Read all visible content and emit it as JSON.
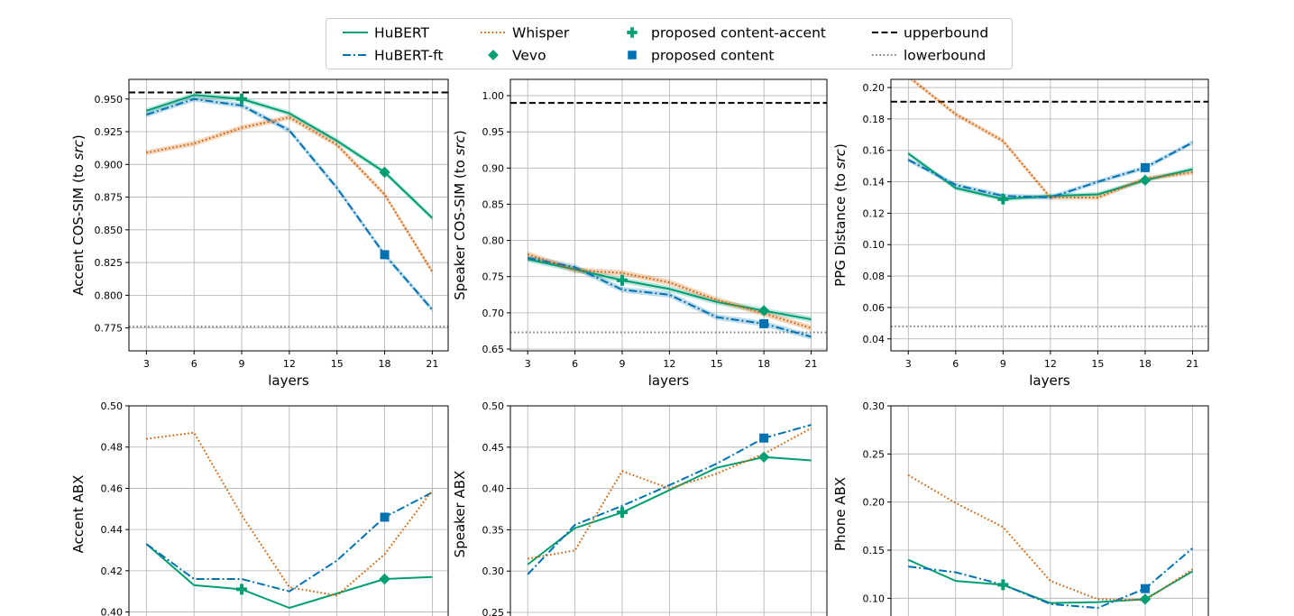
{
  "legend": {
    "entries": [
      {
        "key": "hubert",
        "label": "HuBERT",
        "type": "line",
        "color": "#009e73",
        "dash": "solid"
      },
      {
        "key": "hubert_ft",
        "label": "HuBERT-ft",
        "type": "line",
        "color": "#0072b2",
        "dash": "dashdot"
      },
      {
        "key": "whisper",
        "label": "Whisper",
        "type": "line",
        "color": "#d55e00",
        "dash": "dotted"
      },
      {
        "key": "vevo",
        "label": "Vevo",
        "type": "marker",
        "marker": "diamond",
        "color": "#009e73"
      },
      {
        "key": "pca",
        "label": "proposed content-accent",
        "type": "marker",
        "marker": "plus",
        "color": "#009e73"
      },
      {
        "key": "pc",
        "label": "proposed content",
        "type": "marker",
        "marker": "square",
        "color": "#0072b2"
      },
      {
        "key": "upper",
        "label": "upperbound",
        "type": "line",
        "color": "#000000",
        "dash": "dashed"
      },
      {
        "key": "lower",
        "label": "lowerbound",
        "type": "line",
        "color": "#808080",
        "dash": "dotted"
      }
    ]
  },
  "chart_data": [
    {
      "type": "line",
      "ylabel": "Accent COS-SIM (to src)",
      "ylabel_plain": "Accent COS-SIM (to ",
      "ylabel_italic": "src",
      "xlabel": "layers",
      "x": [
        3,
        6,
        9,
        12,
        15,
        18,
        21
      ],
      "xlim": [
        1.9,
        22.0
      ],
      "ylim": [
        0.7575,
        0.965
      ],
      "yticks": [
        0.775,
        0.8,
        0.825,
        0.85,
        0.875,
        0.9,
        0.925,
        0.95
      ],
      "ytick_labels": [
        "0.775",
        "0.800",
        "0.825",
        "0.850",
        "0.875",
        "0.900",
        "0.925",
        "0.950"
      ],
      "upperbound": 0.955,
      "lowerbound": 0.776,
      "band": 0.002,
      "series": [
        {
          "name": "HuBERT",
          "values": [
            0.941,
            0.953,
            0.95,
            0.939,
            0.918,
            0.894,
            0.859
          ]
        },
        {
          "name": "HuBERT-ft",
          "values": [
            0.938,
            0.95,
            0.945,
            0.926,
            0.882,
            0.831,
            0.789
          ]
        },
        {
          "name": "Whisper",
          "values": [
            0.909,
            0.916,
            0.928,
            0.936,
            0.915,
            0.877,
            0.818
          ]
        }
      ],
      "markers": {
        "vevo": {
          "x": 18,
          "y": 0.894
        },
        "pca": {
          "x": 9,
          "y": 0.95
        },
        "pc": {
          "x": 18,
          "y": 0.831
        }
      }
    },
    {
      "type": "line",
      "ylabel": "Speaker COS-SIM (to src)",
      "ylabel_plain": "Speaker COS-SIM (to ",
      "ylabel_italic": "src",
      "xlabel": "layers",
      "x": [
        3,
        6,
        9,
        12,
        15,
        18,
        21
      ],
      "xlim": [
        1.9,
        22.0
      ],
      "ylim": [
        0.6475,
        1.0225
      ],
      "yticks": [
        0.65,
        0.7,
        0.75,
        0.8,
        0.85,
        0.9,
        0.95,
        1.0
      ],
      "ytick_labels": [
        "0.65",
        "0.70",
        "0.75",
        "0.80",
        "0.85",
        "0.90",
        "0.95",
        "1.00"
      ],
      "upperbound": 0.99,
      "lowerbound": 0.673,
      "band": 0.004,
      "series": [
        {
          "name": "HuBERT",
          "values": [
            0.774,
            0.76,
            0.745,
            0.733,
            0.715,
            0.703,
            0.691
          ]
        },
        {
          "name": "HuBERT-ft",
          "values": [
            0.776,
            0.763,
            0.732,
            0.725,
            0.694,
            0.685,
            0.667
          ]
        },
        {
          "name": "Whisper",
          "values": [
            0.781,
            0.759,
            0.755,
            0.742,
            0.718,
            0.699,
            0.679
          ]
        }
      ],
      "markers": {
        "vevo": {
          "x": 18,
          "y": 0.703
        },
        "pca": {
          "x": 9,
          "y": 0.745
        },
        "pc": {
          "x": 18,
          "y": 0.685
        }
      }
    },
    {
      "type": "line",
      "ylabel": "PPG Distance (to src)",
      "ylabel_plain": "PPG Distance (to ",
      "ylabel_italic": "src",
      "xlabel": "layers",
      "x": [
        3,
        6,
        9,
        12,
        15,
        18,
        21
      ],
      "xlim": [
        1.9,
        22.0
      ],
      "ylim": [
        0.0324,
        0.2052
      ],
      "yticks": [
        0.04,
        0.06,
        0.08,
        0.1,
        0.12,
        0.14,
        0.16,
        0.18,
        0.2
      ],
      "ytick_labels": [
        "0.04",
        "0.06",
        "0.08",
        "0.10",
        "0.12",
        "0.14",
        "0.16",
        "0.18",
        "0.20"
      ],
      "upperbound": 0.191,
      "lowerbound": 0.048,
      "band": 0.0015,
      "series": [
        {
          "name": "HuBERT",
          "values": [
            0.158,
            0.136,
            0.129,
            0.131,
            0.132,
            0.141,
            0.148
          ]
        },
        {
          "name": "HuBERT-ft",
          "values": [
            0.154,
            0.138,
            0.131,
            0.13,
            0.14,
            0.149,
            0.165
          ]
        },
        {
          "name": "Whisper",
          "values": [
            0.207,
            0.183,
            0.166,
            0.13,
            0.13,
            0.142,
            0.146
          ]
        }
      ],
      "markers": {
        "vevo": {
          "x": 18,
          "y": 0.141
        },
        "pca": {
          "x": 9,
          "y": 0.129
        },
        "pc": {
          "x": 18,
          "y": 0.149
        }
      }
    },
    {
      "type": "line",
      "ylabel": "Accent ABX",
      "x": [
        3,
        6,
        9,
        12,
        15,
        18,
        21
      ],
      "xlim": [
        1.9,
        22.0
      ],
      "ylim": [
        0.395,
        0.5
      ],
      "yticks": [
        0.4,
        0.42,
        0.44,
        0.46,
        0.48,
        0.5
      ],
      "ytick_labels": [
        "0.40",
        "0.42",
        "0.44",
        "0.46",
        "0.48",
        "0.50"
      ],
      "series": [
        {
          "name": "HuBERT",
          "values": [
            0.433,
            0.413,
            0.411,
            0.402,
            0.409,
            0.416,
            0.417
          ]
        },
        {
          "name": "HuBERT-ft",
          "values": [
            0.433,
            0.416,
            0.416,
            0.41,
            0.425,
            0.446,
            0.458
          ]
        },
        {
          "name": "Whisper",
          "values": [
            0.484,
            0.487,
            0.447,
            0.412,
            0.408,
            0.428,
            0.459
          ]
        }
      ],
      "markers": {
        "vevo": {
          "x": 18,
          "y": 0.416
        },
        "pca": {
          "x": 9,
          "y": 0.411
        },
        "pc": {
          "x": 18,
          "y": 0.446
        }
      }
    },
    {
      "type": "line",
      "ylabel": "Speaker ABX",
      "x": [
        3,
        6,
        9,
        12,
        15,
        18,
        21
      ],
      "xlim": [
        1.9,
        22.0
      ],
      "ylim": [
        0.238,
        0.5
      ],
      "yticks": [
        0.25,
        0.3,
        0.35,
        0.4,
        0.45,
        0.5
      ],
      "ytick_labels": [
        "0.25",
        "0.30",
        "0.35",
        "0.40",
        "0.45",
        "0.50"
      ],
      "series": [
        {
          "name": "HuBERT",
          "values": [
            0.308,
            0.352,
            0.371,
            0.398,
            0.425,
            0.438,
            0.434
          ]
        },
        {
          "name": "HuBERT-ft",
          "values": [
            0.296,
            0.356,
            0.379,
            0.404,
            0.43,
            0.461,
            0.477
          ]
        },
        {
          "name": "Whisper",
          "values": [
            0.315,
            0.325,
            0.421,
            0.4,
            0.418,
            0.442,
            0.473
          ]
        }
      ],
      "markers": {
        "vevo": {
          "x": 18,
          "y": 0.438
        },
        "pca": {
          "x": 9,
          "y": 0.371
        },
        "pc": {
          "x": 18,
          "y": 0.461
        }
      }
    },
    {
      "type": "line",
      "ylabel": "Phone ABX",
      "x": [
        3,
        6,
        9,
        12,
        15,
        18,
        21
      ],
      "xlim": [
        1.9,
        22.0
      ],
      "ylim": [
        0.075,
        0.3
      ],
      "yticks": [
        0.1,
        0.15,
        0.2,
        0.25,
        0.3
      ],
      "ytick_labels": [
        "0.10",
        "0.15",
        "0.20",
        "0.25",
        "0.30"
      ],
      "series": [
        {
          "name": "HuBERT",
          "values": [
            0.14,
            0.118,
            0.114,
            0.095,
            0.096,
            0.099,
            0.128
          ]
        },
        {
          "name": "HuBERT-ft",
          "values": [
            0.133,
            0.127,
            0.114,
            0.094,
            0.09,
            0.11,
            0.152
          ]
        },
        {
          "name": "Whisper",
          "values": [
            0.228,
            0.199,
            0.174,
            0.118,
            0.099,
            0.098,
            0.13
          ]
        }
      ],
      "markers": {
        "vevo": {
          "x": 18,
          "y": 0.099
        },
        "pca": {
          "x": 9,
          "y": 0.114
        },
        "pc": {
          "x": 18,
          "y": 0.11
        }
      }
    }
  ]
}
